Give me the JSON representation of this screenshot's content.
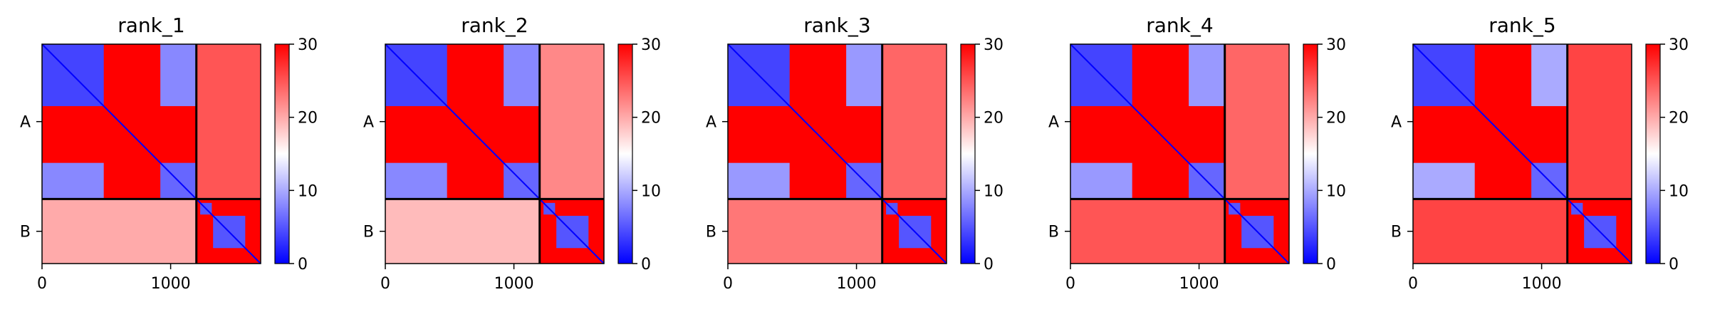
{
  "chart_data": [
    {
      "type": "heatmap",
      "title": "rank_1",
      "chains": [
        {
          "label": "A",
          "length": 1200
        },
        {
          "label": "B",
          "length": 500
        }
      ],
      "xticks": [
        0,
        1000
      ],
      "xticklabels": [
        "0",
        "1000"
      ],
      "yticklabels": [
        "A",
        "B"
      ],
      "colorbar": {
        "min": 0,
        "max": 30,
        "ticks": [
          "0",
          "10",
          "20",
          "30"
        ],
        "colormap": "bwr"
      },
      "blocks": {
        "AA_domain1": 4,
        "AA_domain2": 6,
        "AA_domain_cross": 8,
        "AA_linker": 30,
        "AB": 25,
        "BA": 20,
        "BB": 5
      }
    },
    {
      "type": "heatmap",
      "title": "rank_2",
      "chains": [
        {
          "label": "A",
          "length": 1200
        },
        {
          "label": "B",
          "length": 500
        }
      ],
      "xticks": [
        0,
        1000
      ],
      "xticklabels": [
        "0",
        "1000"
      ],
      "yticklabels": [
        "A",
        "B"
      ],
      "colorbar": {
        "min": 0,
        "max": 30,
        "ticks": [
          "0",
          "10",
          "20",
          "30"
        ],
        "colormap": "bwr"
      },
      "blocks": {
        "AA_domain1": 4,
        "AA_domain2": 6,
        "AA_domain_cross": 8,
        "AA_linker": 30,
        "AB": 22,
        "BA": 19,
        "BB": 5
      }
    },
    {
      "type": "heatmap",
      "title": "rank_3",
      "chains": [
        {
          "label": "A",
          "length": 1200
        },
        {
          "label": "B",
          "length": 500
        }
      ],
      "xticks": [
        0,
        1000
      ],
      "xticklabels": [
        "0",
        "1000"
      ],
      "yticklabels": [
        "A",
        "B"
      ],
      "colorbar": {
        "min": 0,
        "max": 30,
        "ticks": [
          "0",
          "10",
          "20",
          "30"
        ],
        "colormap": "bwr"
      },
      "blocks": {
        "AA_domain1": 4,
        "AA_domain2": 6,
        "AA_domain_cross": 9,
        "AA_linker": 30,
        "AB": 24,
        "BA": 23,
        "BB": 5
      }
    },
    {
      "type": "heatmap",
      "title": "rank_4",
      "chains": [
        {
          "label": "A",
          "length": 1200
        },
        {
          "label": "B",
          "length": 500
        }
      ],
      "xticks": [
        0,
        1000
      ],
      "xticklabels": [
        "0",
        "1000"
      ],
      "yticklabels": [
        "A",
        "B"
      ],
      "colorbar": {
        "min": 0,
        "max": 30,
        "ticks": [
          "0",
          "10",
          "20",
          "30"
        ],
        "colormap": "bwr"
      },
      "blocks": {
        "AA_domain1": 4,
        "AA_domain2": 6,
        "AA_domain_cross": 9,
        "AA_linker": 30,
        "AB": 24,
        "BA": 25,
        "BB": 5
      }
    },
    {
      "type": "heatmap",
      "title": "rank_5",
      "chains": [
        {
          "label": "A",
          "length": 1200
        },
        {
          "label": "B",
          "length": 500
        }
      ],
      "xticks": [
        0,
        1000
      ],
      "xticklabels": [
        "0",
        "1000"
      ],
      "yticklabels": [
        "A",
        "B"
      ],
      "colorbar": {
        "min": 0,
        "max": 30,
        "ticks": [
          "0",
          "10",
          "20",
          "30"
        ],
        "colormap": "bwr"
      },
      "blocks": {
        "AA_domain1": 4,
        "AA_domain2": 6,
        "AA_domain_cross": 10,
        "AA_linker": 30,
        "AB": 26,
        "BA": 26,
        "BB": 5
      }
    }
  ],
  "colors": {
    "low": "#0000ff",
    "mid": "#ffffff",
    "high": "#ff0000",
    "divider": "#000000"
  }
}
